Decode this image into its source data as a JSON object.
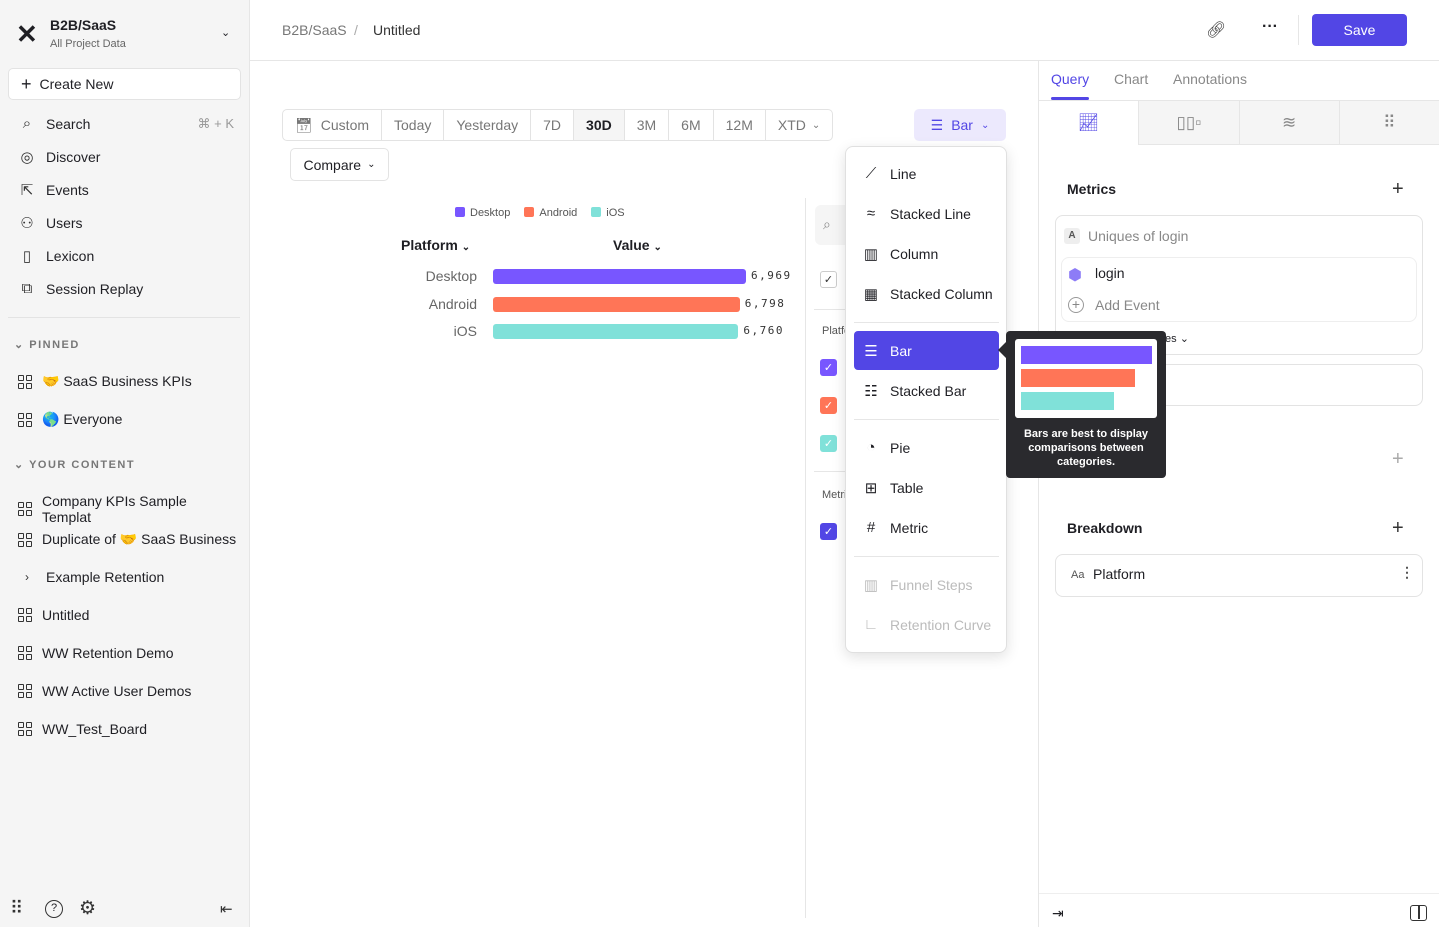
{
  "sidebar": {
    "project": "B2B/SaaS",
    "subtitle": "All Project Data",
    "create": "Create New",
    "nav": [
      {
        "label": "Search",
        "icon": "search-icon",
        "shortcut": "⌘ + K"
      },
      {
        "label": "Discover",
        "icon": "compass-icon"
      },
      {
        "label": "Events",
        "icon": "cursor-click-icon"
      },
      {
        "label": "Users",
        "icon": "users-icon"
      },
      {
        "label": "Lexicon",
        "icon": "book-icon"
      },
      {
        "label": "Session Replay",
        "icon": "replay-icon"
      }
    ],
    "pinned_label": "PINNED",
    "pinned": [
      {
        "emoji": "🤝",
        "label": "SaaS Business KPIs"
      },
      {
        "emoji": "🌎",
        "label": "Everyone"
      }
    ],
    "content_label": "YOUR CONTENT",
    "content": [
      {
        "label": "Company KPIs Sample Templat"
      },
      {
        "label": "Duplicate of",
        "emoji": "🤝",
        "label2": "SaaS Business"
      },
      {
        "label": "Example Retention",
        "folder": true
      },
      {
        "label": "Untitled"
      },
      {
        "label": "WW Retention Demo"
      },
      {
        "label": "WW Active User Demos"
      },
      {
        "label": "WW_Test_Board"
      }
    ]
  },
  "header": {
    "breadcrumb": [
      "B2B/SaaS",
      "Untitled"
    ],
    "save": "Save"
  },
  "toolbar": {
    "ranges": [
      "Custom",
      "Today",
      "Yesterday",
      "7D",
      "30D",
      "3M",
      "6M",
      "12M",
      "XTD"
    ],
    "selected": "30D",
    "compare": "Compare",
    "chart_type": "Bar"
  },
  "chart_data": {
    "type": "bar",
    "orientation": "horizontal",
    "columns": [
      "Platform",
      "Value"
    ],
    "categories": [
      "Desktop",
      "Android",
      "iOS"
    ],
    "values": [
      6969,
      6798,
      6760
    ],
    "value_labels": [
      "6,969",
      "6,798",
      "6,760"
    ],
    "colors": [
      "#7856ff",
      "#ff7557",
      "#80e1d9"
    ],
    "legend": [
      "Desktop",
      "Android",
      "iOS"
    ],
    "legend_placement": "top"
  },
  "filter_panel": {
    "platform": "Platform",
    "metrics": "Metrics"
  },
  "dropdown": {
    "items": [
      {
        "label": "Line",
        "icon": "line-chart-icon",
        "glyph": "📈"
      },
      {
        "label": "Stacked Line",
        "icon": "stacked-line-icon"
      },
      {
        "label": "Column",
        "icon": "column-chart-icon"
      },
      {
        "label": "Stacked Column",
        "icon": "stacked-column-icon"
      },
      {
        "label": "Bar",
        "icon": "bar-chart-icon",
        "active": true
      },
      {
        "label": "Stacked Bar",
        "icon": "stacked-bar-icon"
      },
      {
        "label": "Pie",
        "icon": "pie-chart-icon"
      },
      {
        "label": "Table",
        "icon": "table-icon"
      },
      {
        "label": "Metric",
        "icon": "hash-icon"
      },
      {
        "label": "Funnel Steps",
        "icon": "funnel-icon",
        "disabled": true
      },
      {
        "label": "Retention Curve",
        "icon": "retention-icon",
        "disabled": true
      }
    ]
  },
  "tooltip": {
    "text": "Bars are best to display comparisons between categories."
  },
  "right": {
    "tabs": [
      "Query",
      "Chart",
      "Annotations"
    ],
    "active_tab": "Query",
    "metrics": "Metrics",
    "metric_letter": "A",
    "metric_name": "Uniques of login",
    "event": "login",
    "add_event": "Add Event",
    "partial": "es",
    "breakdown": "Breakdown",
    "breakdown_type": "Aa",
    "breakdown_value": "Platform"
  },
  "accent": "#5246e5"
}
